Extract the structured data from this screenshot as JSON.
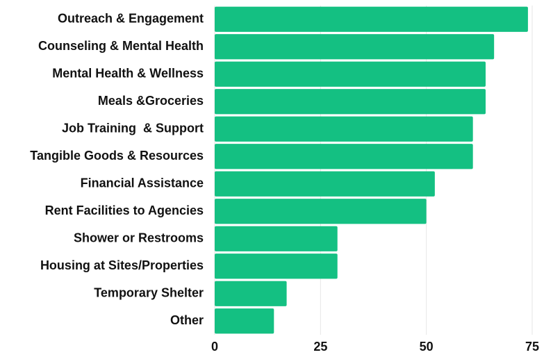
{
  "chart_data": {
    "type": "barh",
    "categories": [
      "Outreach & Engagement",
      "Counseling & Mental Health",
      "Mental Health & Wellness",
      "Meals &Groceries",
      "Job Training  & Support",
      "Tangible Goods & Resources",
      "Financial Assistance",
      "Rent Facilities to Agencies",
      "Shower or Restrooms",
      "Housing at Sites/Properties",
      "Temporary Shelter",
      "Other"
    ],
    "values": [
      74,
      66,
      64,
      64,
      61,
      61,
      52,
      50,
      29,
      29,
      17,
      14
    ],
    "color": "#14c082",
    "xlim": [
      0,
      75
    ],
    "xticks": [
      0,
      25,
      50,
      75
    ],
    "grid": true
  }
}
